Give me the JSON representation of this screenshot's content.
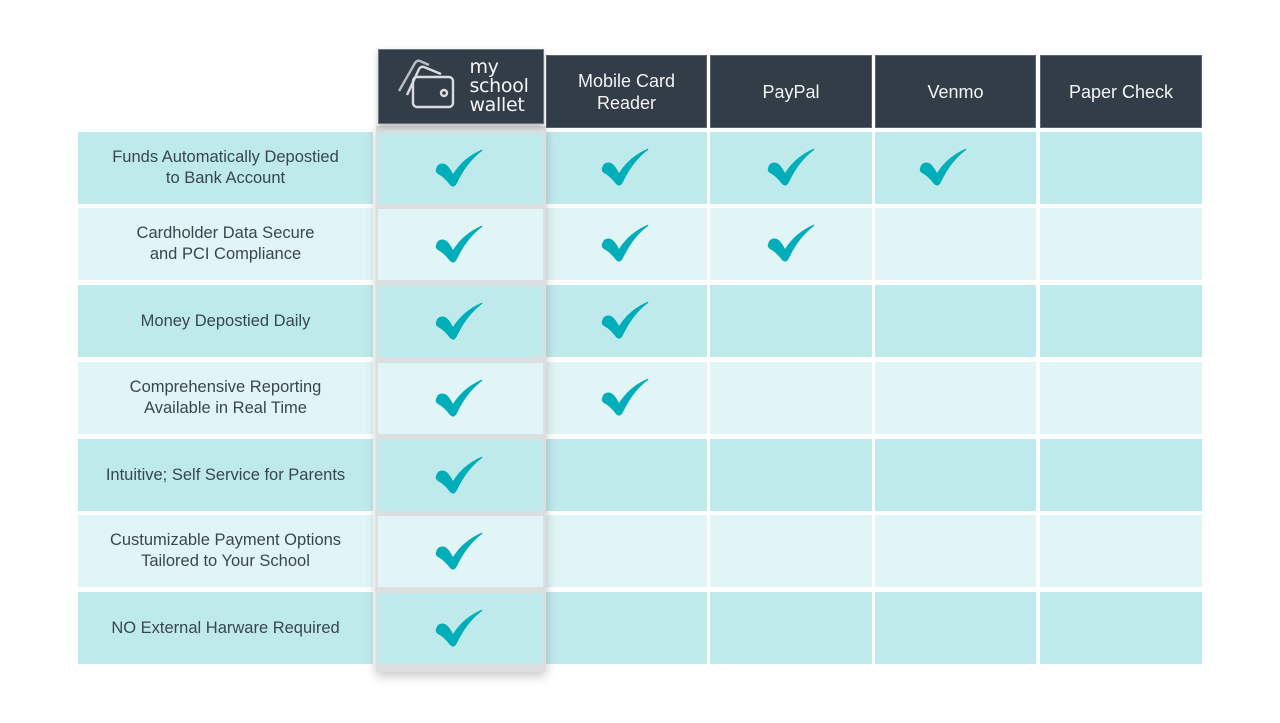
{
  "brand": {
    "name_lines": [
      "my",
      "school",
      "wallet"
    ],
    "icon": "wallet-icon"
  },
  "columns": [
    {
      "key": "my_school_wallet",
      "label": "my school wallet",
      "highlighted": true
    },
    {
      "key": "mobile_card_reader",
      "label": "Mobile Card Reader",
      "lines": [
        "Mobile Card",
        "Reader"
      ]
    },
    {
      "key": "paypal",
      "label": "PayPal"
    },
    {
      "key": "venmo",
      "label": "Venmo"
    },
    {
      "key": "paper_check",
      "label": "Paper Check"
    }
  ],
  "rows": [
    {
      "lines": [
        "Funds Automatically Depostied",
        "to Bank Account"
      ],
      "checks": [
        true,
        true,
        true,
        true,
        false
      ]
    },
    {
      "lines": [
        "Cardholder Data Secure",
        "and PCI Compliance"
      ],
      "checks": [
        true,
        true,
        true,
        false,
        false
      ]
    },
    {
      "lines": [
        "Money Depostied Daily"
      ],
      "checks": [
        true,
        true,
        false,
        false,
        false
      ]
    },
    {
      "lines": [
        "Comprehensive Reporting",
        "Available in Real Time"
      ],
      "checks": [
        true,
        true,
        false,
        false,
        false
      ]
    },
    {
      "lines": [
        "Intuitive; Self Service for Parents"
      ],
      "checks": [
        true,
        false,
        false,
        false,
        false
      ]
    },
    {
      "lines": [
        "Custumizable Payment Options",
        "Tailored to Your School"
      ],
      "checks": [
        true,
        false,
        false,
        false,
        false
      ]
    },
    {
      "lines": [
        "NO External Harware Required"
      ],
      "checks": [
        true,
        false,
        false,
        false,
        false
      ]
    }
  ],
  "colors": {
    "header_bg": "#323d47",
    "row_dark": "#bfeaeb",
    "row_light": "#e1f5f6",
    "check": "#00aeb9",
    "text": "#37474f"
  },
  "icons": {
    "check": "check-mark-icon"
  }
}
